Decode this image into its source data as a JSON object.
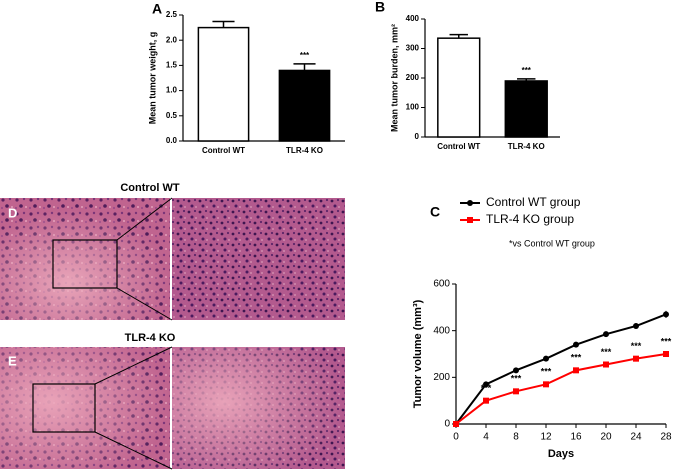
{
  "chart_data": [
    {
      "type": "bar",
      "panel": "A",
      "ylabel": "Mean tumor weight, g",
      "categories": [
        "Control WT",
        "TLR-4 KO"
      ],
      "values": [
        2.25,
        1.4
      ],
      "errors": [
        0.12,
        0.13
      ],
      "colors": [
        "#ffffff",
        "#000000"
      ],
      "annotation": "***",
      "ylim": [
        0,
        2.5
      ],
      "yticks": [
        {
          "value": 0,
          "label": "0.0"
        },
        0.5,
        {
          "value": 1,
          "label": "1.0"
        },
        1.5,
        {
          "value": 2,
          "label": "2.0"
        },
        2.5
      ]
    },
    {
      "type": "bar",
      "panel": "B",
      "ylabel": "Mean tumor burden, mm²",
      "categories": [
        "Control  WT",
        "TLR-4 KO"
      ],
      "values": [
        335,
        190
      ],
      "errors": [
        12,
        7
      ],
      "colors": [
        "#ffffff",
        "#000000"
      ],
      "annotation": "***",
      "ylim": [
        0,
        400
      ],
      "yticks": [
        0,
        100,
        200,
        300,
        400
      ]
    },
    {
      "type": "line",
      "panel": "C",
      "ylabel": "Tumor volume (mm³)",
      "xlabel": "Days",
      "note": "*vs Control WT group",
      "annotation": "***",
      "x": [
        0,
        4,
        8,
        12,
        16,
        20,
        24,
        28
      ],
      "series": [
        {
          "name": "Control WT group",
          "color": "#000000",
          "values": [
            0,
            170,
            230,
            280,
            340,
            385,
            420,
            470
          ],
          "errors": [
            0,
            6,
            6,
            6,
            6,
            6,
            12,
            15
          ]
        },
        {
          "name": "TLR-4 KO group",
          "color": "#ff0000",
          "values": [
            0,
            100,
            140,
            170,
            230,
            255,
            280,
            300
          ],
          "errors": [
            0,
            5,
            5,
            5,
            6,
            6,
            6,
            8
          ]
        }
      ],
      "xlim": [
        0,
        28
      ],
      "xticks": [
        0,
        4,
        8,
        12,
        16,
        20,
        24,
        28
      ],
      "ylim": [
        0,
        600
      ],
      "yticks": [
        0,
        200,
        400,
        600
      ]
    }
  ],
  "histology": {
    "panels": [
      {
        "label": "D",
        "title": "Control WT"
      },
      {
        "label": "E",
        "title": "TLR-4 KO"
      }
    ]
  }
}
